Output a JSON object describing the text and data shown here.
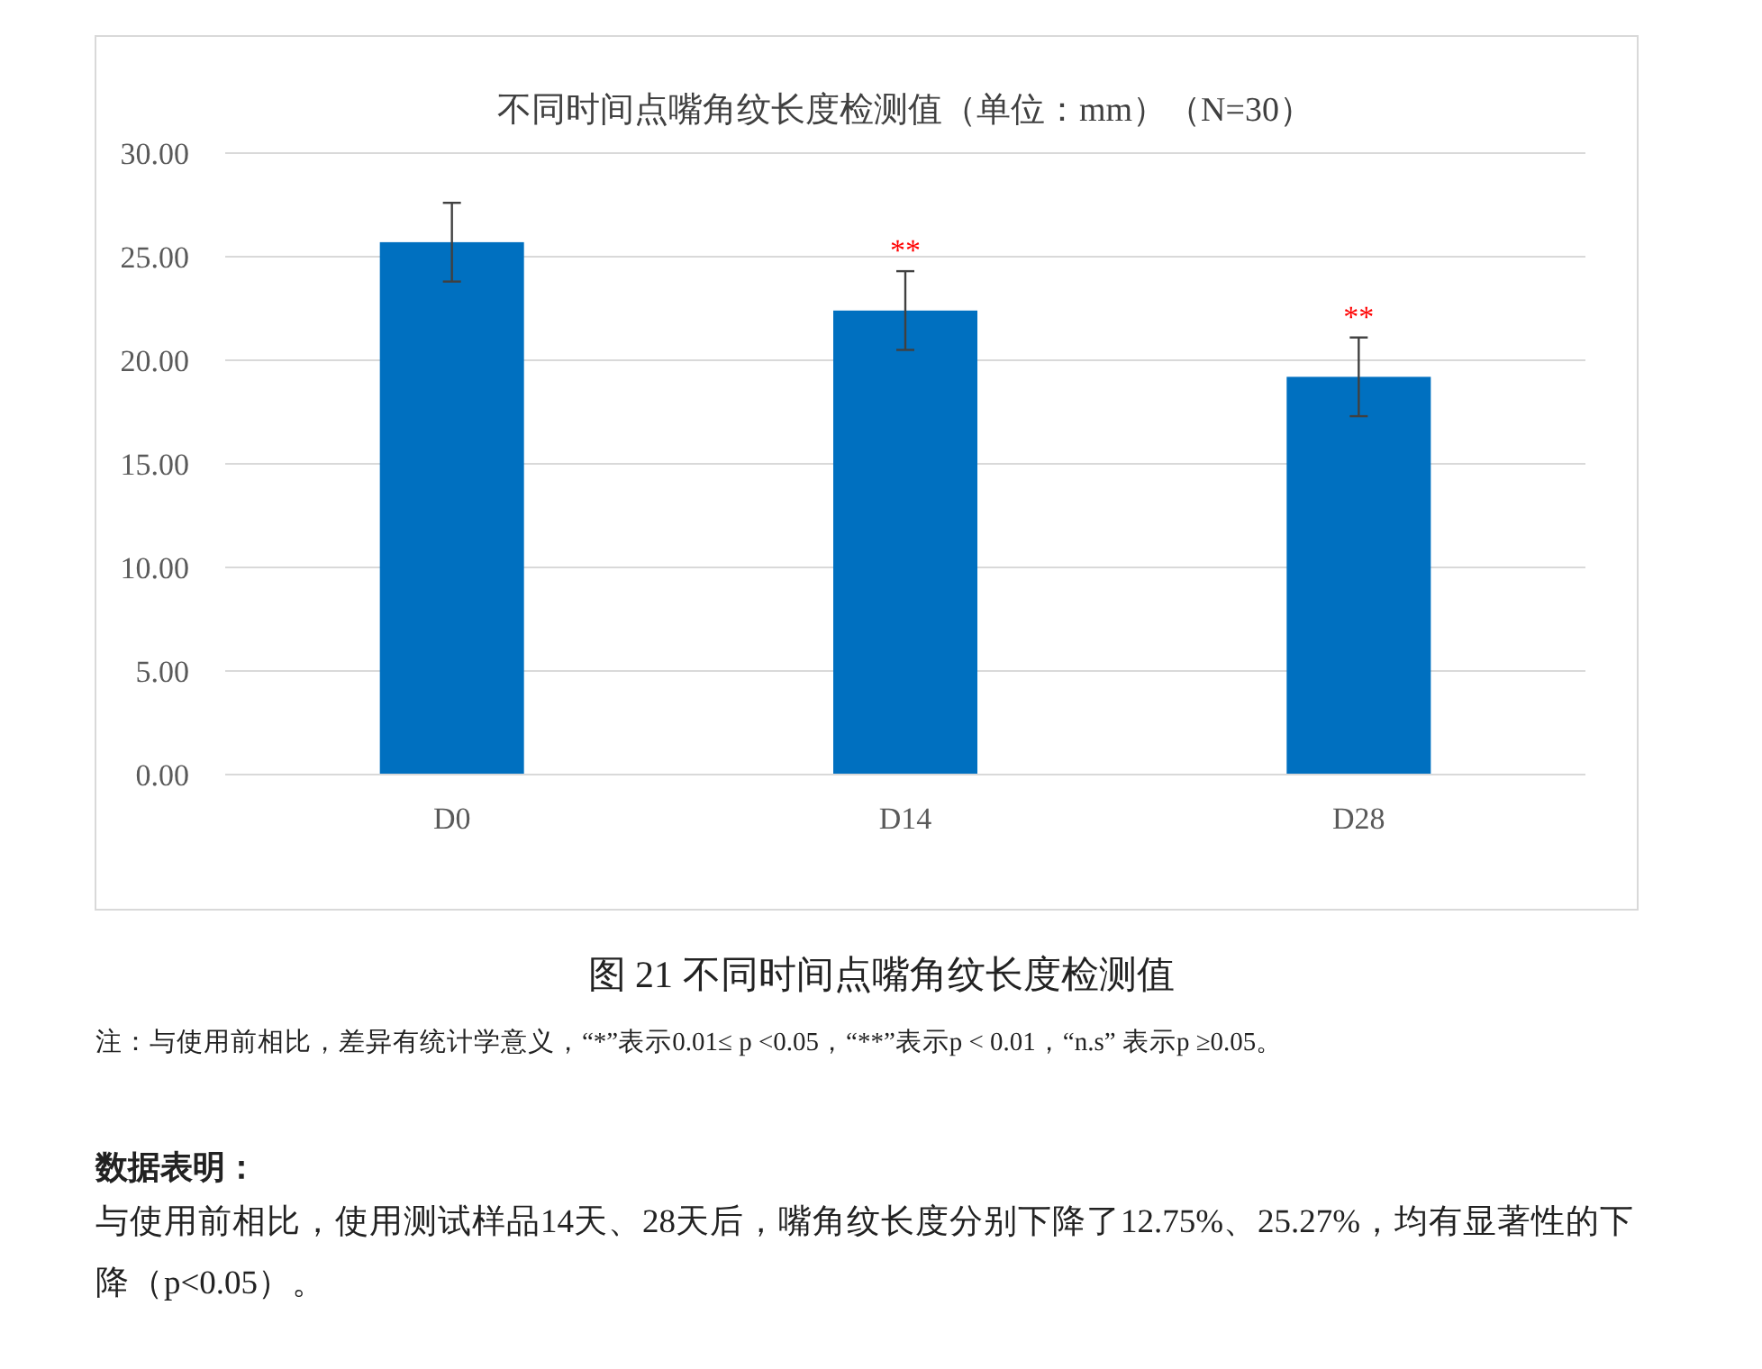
{
  "chart_data": {
    "type": "bar",
    "title": "不同时间点嘴角纹长度检测值（单位：mm）（N=30）",
    "categories": [
      "D0",
      "D14",
      "D28"
    ],
    "values": [
      25.7,
      22.4,
      19.2
    ],
    "errors": [
      1.9,
      1.9,
      1.9
    ],
    "color": "#0070c0",
    "ylim": [
      0,
      30
    ],
    "yticks": [
      {
        "value": 0,
        "label": "0.00"
      },
      {
        "value": 5,
        "label": "5.00"
      },
      {
        "value": 10,
        "label": "10.00"
      },
      {
        "value": 15,
        "label": "15.00"
      },
      {
        "value": 20,
        "label": "20.00"
      },
      {
        "value": 25,
        "label": "25.00"
      },
      {
        "value": 30,
        "label": "30.00"
      }
    ],
    "grid": "y",
    "annotations": [
      {
        "text": "**",
        "x": "D14",
        "y": 24.3
      },
      {
        "text": "**",
        "x": "D28",
        "y": 21.1
      },
      "图 21 不同时间点嘴角纹长度检测值",
      "注：与使用前相比，差异有统计学意义，“*”表示0.01≤ p <0.05，“**”表示p < 0.01，“n.s” 表示p ≥0.05。",
      "数据表明：",
      "与使用前相比，使用测试样品14天、28天后，嘴角纹长度分别下降了12.75%、25.27%，均有显著性的下降（p<0.05）。"
    ]
  }
}
